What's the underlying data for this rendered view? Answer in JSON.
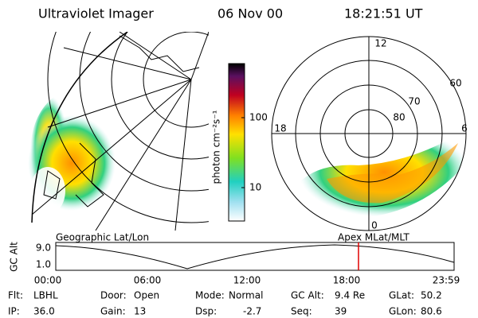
{
  "header": {
    "title": "Ultraviolet Imager",
    "date": "06 Nov 00",
    "time": "18:21:51 UT"
  },
  "colorbar": {
    "label": "photon cm⁻²s⁻¹",
    "ticks": [
      "100",
      "10"
    ]
  },
  "polar": {
    "mlt_labels": [
      "12",
      "18",
      "6",
      "0"
    ],
    "lat_labels": [
      "60",
      "70",
      "80"
    ]
  },
  "strip": {
    "left_caption": "Geographic Lat/Lon",
    "right_caption": "Apex MLat/MLT",
    "y_label": "GC Alt",
    "y_ticks": [
      "9.0",
      "1.0"
    ],
    "x_ticks": [
      "00:00",
      "06:00",
      "12:00",
      "18:00",
      "23:59"
    ]
  },
  "info": [
    [
      {
        "label": "Flt:",
        "value": "LBHL"
      },
      {
        "label": "Door:",
        "value": "Open"
      },
      {
        "label": "Mode:",
        "value": "Normal"
      },
      {
        "label": "GC Alt:",
        "value": "9.4 Re"
      },
      {
        "label": "GLat:",
        "value": "50.2"
      }
    ],
    [
      {
        "label": "IP:",
        "value": "36.0"
      },
      {
        "label": "Gain:",
        "value": "13"
      },
      {
        "label": "Dsp:",
        "value": "-2.7"
      },
      {
        "label": "Seq:",
        "value": "39"
      },
      {
        "label": "GLon:",
        "value": "80.6"
      }
    ]
  ]
}
